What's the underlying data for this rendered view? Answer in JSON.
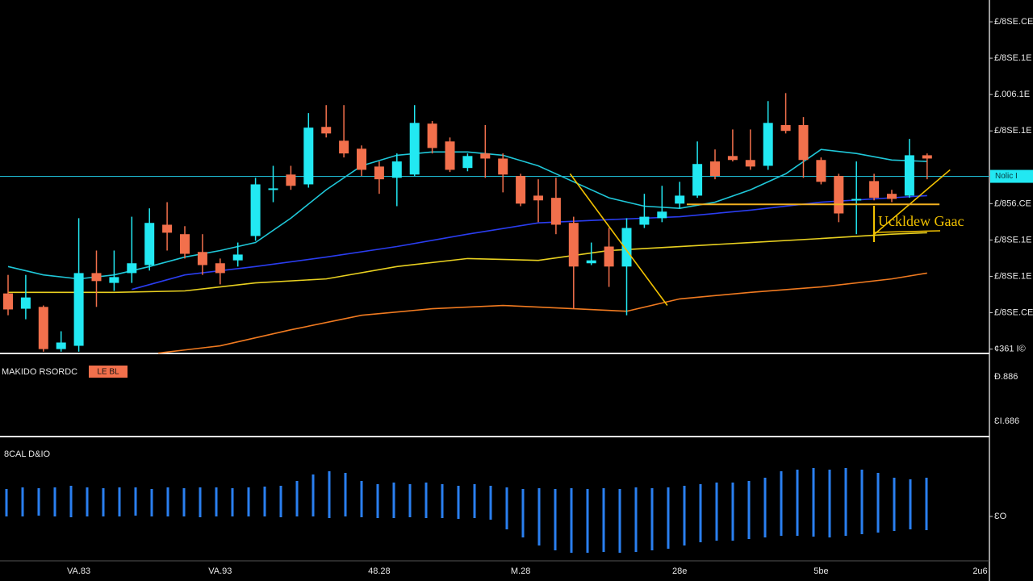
{
  "chart_data": [
    {
      "type": "candlestick",
      "categories": [
        null,
        null,
        null,
        null,
        "VA.83",
        null,
        null,
        null,
        null,
        null,
        null,
        null,
        "VA.93",
        null,
        null,
        null,
        null,
        null,
        null,
        null,
        null,
        "48.28",
        null,
        null,
        null,
        null,
        null,
        null,
        null,
        "M.28",
        null,
        null,
        null,
        null,
        null,
        null,
        null,
        null,
        "28e",
        null,
        null,
        null,
        null,
        null,
        null,
        null,
        "5be",
        null,
        null,
        null,
        null,
        null,
        null,
        null,
        null,
        "2u6"
      ],
      "open": [
        1.53,
        1.11,
        1.16,
        0,
        0.09,
        2.09,
        1.82,
        2.09,
        2.31,
        3.42,
        3.16,
        2.67,
        2.36,
        2.44,
        3.11,
        4.38,
        4.8,
        4.53,
        6.11,
        5.73,
        5.51,
        5.02,
        4.71,
        4.8,
        6.2,
        5.71,
        4.98,
        5.38,
        5.24,
        4.76,
        4.22,
        4.16,
        3.47,
        2.36,
        2.82,
        2.27,
        3.42,
        3.6,
        4,
        4.22,
        5.16,
        5.31,
        5.2,
        5.04,
        6.16,
        6.16,
        5.2,
        4.76,
        4.09,
        4.62,
        4.27,
        4.22,
        5.33,
        null,
        null,
        null
      ],
      "high": [
        2.04,
        2.04,
        1.2,
        0.49,
        3.6,
        2.71,
        2.71,
        3.64,
        3.87,
        4.04,
        3.38,
        3.16,
        2.49,
        2.93,
        4.71,
        5.04,
        5.04,
        6.49,
        6.71,
        6.71,
        5.6,
        5.16,
        5.38,
        6.71,
        6.27,
        5.82,
        5.38,
        6.16,
        5.38,
        4.82,
        4.67,
        4.71,
        3.64,
        2.93,
        3.33,
        3.6,
        4.27,
        4.49,
        4.6,
        5.71,
        5.49,
        6.04,
        6.04,
        6.82,
        7.04,
        6.38,
        5.27,
        4.82,
        5.16,
        4.82,
        4.38,
        5.78,
        5.38,
        null,
        null,
        null
      ],
      "low": [
        0.93,
        0.82,
        -0.07,
        -0.07,
        -0.07,
        1.16,
        1.6,
        1.82,
        2.16,
        2.71,
        2.49,
        2.04,
        1.78,
        2.27,
        2.98,
        4.04,
        4.38,
        4.44,
        5.82,
        5.27,
        4.76,
        4.27,
        3.93,
        4.76,
        5.38,
        4.87,
        4.89,
        4.71,
        4.31,
        3.93,
        3.49,
        3.16,
        1.11,
        2.31,
        1.71,
        0.93,
        3.33,
        3.49,
        3.87,
        4.16,
        4.67,
        5.16,
        4.93,
        4.93,
        5.93,
        4.71,
        4.53,
        3.49,
        3.16,
        4.09,
        4.04,
        4.16,
        4.67,
        null,
        null,
        null
      ],
      "close": [
        1.09,
        1.42,
        0,
        0.18,
        2.09,
        1.87,
        1.98,
        2.36,
        3.47,
        3.2,
        2.62,
        2.31,
        2.09,
        2.6,
        4.53,
        4.42,
        4.49,
        6.09,
        5.93,
        5.38,
        4.93,
        4.67,
        5.16,
        6.22,
        5.53,
        4.93,
        5.31,
        5.24,
        4.8,
        4,
        4.09,
        3.42,
        2.27,
        2.44,
        2.27,
        3.33,
        3.64,
        3.78,
        4.22,
        5.09,
        4.76,
        5.2,
        5.02,
        6.22,
        6,
        5.2,
        4.6,
        3.73,
        4.13,
        4.16,
        4.13,
        5.33,
        5.24,
        null,
        null,
        null
      ],
      "up_color": "#22e8f2",
      "down_color": "#f2704c",
      "ylim": [
        -0.12,
        9.6
      ],
      "yticks": [
        {
          "value": 9,
          "label": "£/8SE.CE"
        },
        {
          "value": 8,
          "label": "£/8SE.1E"
        },
        {
          "value": 7,
          "label": "£.006.1E"
        },
        {
          "value": 6,
          "label": "£/8SE.1E"
        },
        {
          "value": 4,
          "label": "£/856.CE"
        },
        {
          "value": 3,
          "label": "£/8SE.1E"
        },
        {
          "value": 2,
          "label": "£/8SE.1E"
        },
        {
          "value": 1,
          "label": "£/8SE.CE"
        },
        {
          "value": 0,
          "label": "¢361 I©"
        }
      ],
      "last_price": {
        "value": 4.75,
        "label": "Nolic I"
      },
      "moving_averages": [
        {
          "color": "#1fc7d8",
          "x": [
            0,
            2,
            4,
            6,
            8,
            10,
            12,
            14,
            16,
            18,
            20,
            22,
            24,
            26,
            28,
            30,
            32,
            34,
            36,
            38,
            40,
            42,
            44,
            46,
            48,
            50,
            52
          ],
          "values": [
            2.27,
            2.04,
            1.93,
            2.04,
            2.27,
            2.53,
            2.71,
            2.93,
            3.6,
            4.38,
            5.04,
            5.33,
            5.42,
            5.42,
            5.33,
            5.04,
            4.6,
            4.16,
            3.93,
            3.87,
            4.04,
            4.38,
            4.82,
            5.49,
            5.38,
            5.2,
            5.16
          ]
        },
        {
          "color": "#2a3df0",
          "x": [
            7,
            10,
            14,
            18,
            22,
            26,
            30,
            34,
            38,
            42,
            46,
            50,
            52
          ],
          "values": [
            1.64,
            2.04,
            2.27,
            2.53,
            2.82,
            3.16,
            3.47,
            3.56,
            3.64,
            3.82,
            4.04,
            4.16,
            4.22
          ]
        },
        {
          "color": "#e8d020",
          "x": [
            0,
            6,
            10,
            14,
            18,
            22,
            26,
            30,
            34,
            38,
            42,
            46,
            50,
            52
          ],
          "values": [
            1.56,
            1.56,
            1.6,
            1.82,
            1.93,
            2.27,
            2.49,
            2.44,
            2.71,
            2.82,
            2.93,
            3.04,
            3.16,
            3.2
          ]
        },
        {
          "color": "#f07a20",
          "x": [
            8.5,
            12,
            16,
            20,
            24,
            28,
            32,
            35,
            38,
            42,
            46,
            50,
            52
          ],
          "values": [
            -0.11,
            0.09,
            0.53,
            0.93,
            1.11,
            1.2,
            1.11,
            1.04,
            1.38,
            1.56,
            1.71,
            1.93,
            2.09
          ]
        }
      ],
      "trendlines": [
        {
          "color": "#f2c200",
          "x": [
            31.8,
            37.3
          ],
          "values": [
            4.82,
            1.2
          ]
        },
        {
          "color": "#f2c200",
          "x": [
            48.9,
            53.3
          ],
          "values": [
            3.11,
            4.93
          ]
        }
      ],
      "levels": [
        {
          "color": "#f2b020",
          "x": [
            38.4,
            52.7
          ],
          "value": 3.98
        }
      ],
      "annotation": "Uckldew Gaac"
    },
    {
      "type": "range_bar",
      "title": "8CAL D&IO",
      "color": "#2a7ff0",
      "upper": [
        0.7,
        0.8,
        0.75,
        0.8,
        0.9,
        0.8,
        0.75,
        0.8,
        0.8,
        0.7,
        0.8,
        0.75,
        0.8,
        0.8,
        0.75,
        0.8,
        0.85,
        0.9,
        1.2,
        1.6,
        1.8,
        1.7,
        1.2,
        1.0,
        1.1,
        1.0,
        1.1,
        1.0,
        0.9,
        1.0,
        0.9,
        0.8,
        0.7,
        0.75,
        0.7,
        0.75,
        0.7,
        0.75,
        0.7,
        0.8,
        0.75,
        0.8,
        0.9,
        1.0,
        1.1,
        1.1,
        1.2,
        1.4,
        1.8,
        1.9,
        2.0,
        1.9,
        2.0,
        1.9,
        1.7,
        1.4,
        1.3,
        1.4
      ],
      "lower": [
        -1.0,
        -1.0,
        -0.95,
        -1.0,
        -1.05,
        -1.0,
        -1.0,
        -1.0,
        -0.95,
        -1.0,
        -1.0,
        -1.0,
        -1.05,
        -1.0,
        -1.0,
        -1.0,
        -1.0,
        -1.05,
        -1.0,
        -1.0,
        -1.1,
        -1.0,
        -1.05,
        -1.1,
        -1.1,
        -1.05,
        -1.1,
        -1.1,
        -1.15,
        -1.1,
        -1.2,
        -1.8,
        -2.3,
        -2.8,
        -3.1,
        -3.25,
        -3.25,
        -3.2,
        -3.25,
        -3.2,
        -3.1,
        -3.0,
        -2.8,
        -2.6,
        -2.5,
        -2.5,
        -2.4,
        -2.3,
        -2.2,
        -2.2,
        -2.25,
        -2.3,
        -2.2,
        -2.1,
        -2.0,
        -1.9,
        -1.8,
        -1.85
      ],
      "ylim": [
        -3.75,
        3.75
      ],
      "yticks": [
        {
          "value": -1,
          "label": "ƐO"
        }
      ]
    }
  ],
  "indicator_panel": {
    "title": "MAKIDO RSORDC",
    "badge": "LE BL",
    "labels": [
      "Ð.886",
      "ƐI.686"
    ]
  }
}
